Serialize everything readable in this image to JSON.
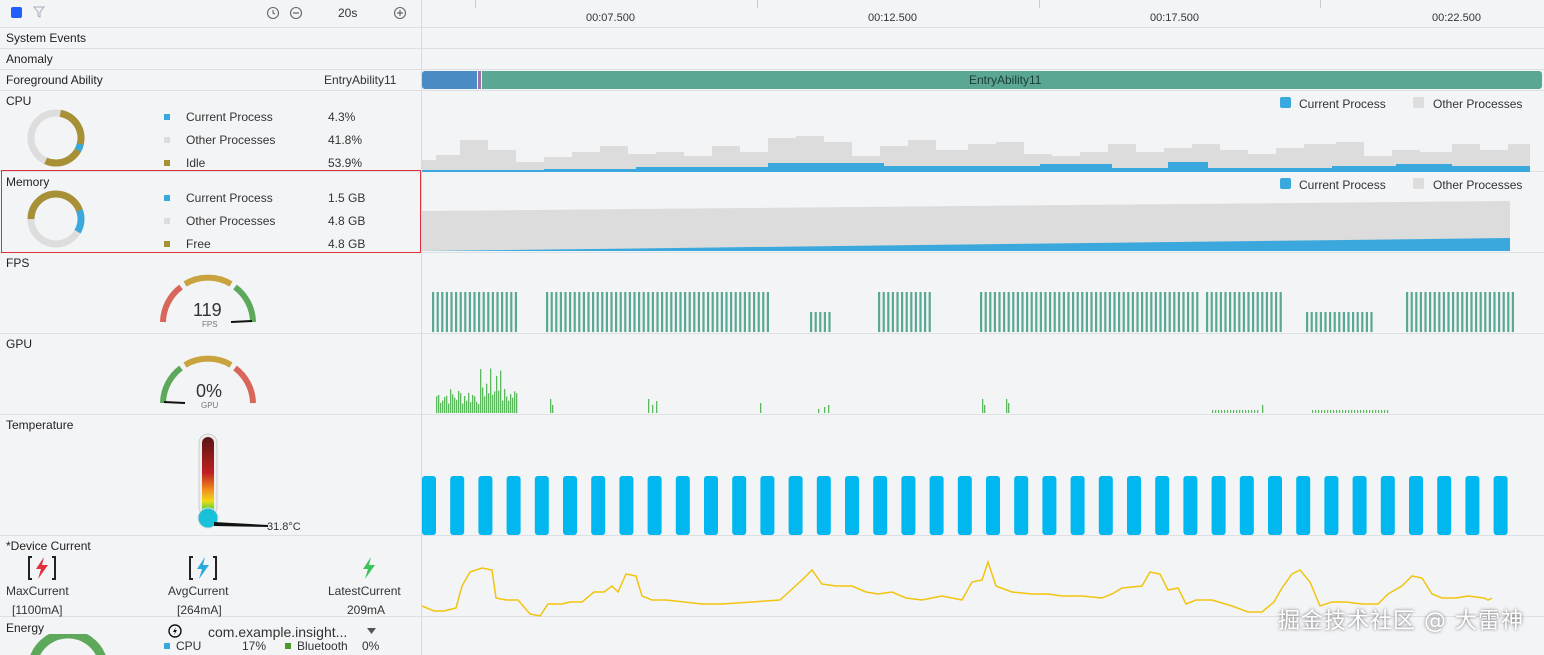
{
  "toolbar": {
    "duration": "20s"
  },
  "timeline": {
    "ticks": [
      "00:07.500",
      "00:12.500",
      "00:17.500",
      "00:22.500"
    ]
  },
  "rows": {
    "system_events": "System Events",
    "anomaly": "Anomaly",
    "foreground_ability": {
      "title": "Foreground Ability",
      "value": "EntryAbility11",
      "bar_label": "EntryAbility11"
    },
    "cpu": {
      "title": "CPU",
      "items": [
        {
          "label": "Current Process",
          "value": "4.3%",
          "color": "#3aa8dd"
        },
        {
          "label": "Other Processes",
          "value": "41.8%",
          "color": "#d9d9d9"
        },
        {
          "label": "Idle",
          "value": "53.9%",
          "color": "#a89036"
        }
      ],
      "legend": [
        "Current Process",
        "Other Processes"
      ]
    },
    "memory": {
      "title": "Memory",
      "items": [
        {
          "label": "Current Process",
          "value": "1.5 GB",
          "color": "#3aa8dd"
        },
        {
          "label": "Other Processes",
          "value": "4.8 GB",
          "color": "#d9d9d9"
        },
        {
          "label": "Free",
          "value": "4.8 GB",
          "color": "#a89036"
        }
      ],
      "legend": [
        "Current Process",
        "Other Processes"
      ]
    },
    "fps": {
      "title": "FPS",
      "value": "119",
      "unit": "FPS"
    },
    "gpu": {
      "title": "GPU",
      "value": "0%",
      "unit": "GPU"
    },
    "temperature": {
      "title": "Temperature",
      "value": "31.8°C"
    },
    "device_current": {
      "title": "*Device Current",
      "max": {
        "label": "MaxCurrent",
        "value": "[1100mA]"
      },
      "avg": {
        "label": "AvgCurrent",
        "value": "[264mA]"
      },
      "latest": {
        "label": "LatestCurrent",
        "value": "209mA"
      }
    },
    "energy": {
      "title": "Energy",
      "app": "com.example.insight...",
      "cpu_label": "CPU",
      "cpu_value": "17%",
      "bt_label": "Bluetooth",
      "bt_value": "0%"
    }
  },
  "watermark": "掘金技术社区 @ 大雷神",
  "colors": {
    "accent": "#3aa8dd",
    "ability": "#5aa894",
    "ability_start": "#4b8bc4",
    "fps_bar": "#5aa894",
    "gpu_bar": "#5cb85c",
    "temp_bar": "#00b7ef",
    "current_line": "#f1c40f",
    "highlight": "#e0303a"
  }
}
